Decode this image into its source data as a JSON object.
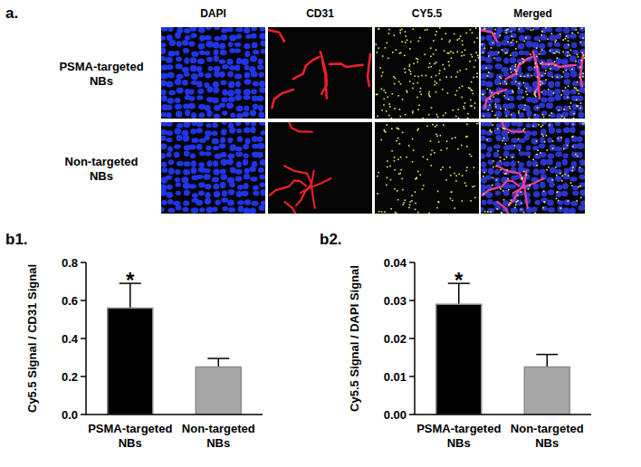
{
  "panel_a": {
    "label": "a.",
    "columns": [
      "DAPI",
      "CD31",
      "CY5.5",
      "Merged"
    ],
    "rows": [
      "PSMA-targeted NBs",
      "Non-targeted NBs"
    ]
  },
  "chart_data": [
    {
      "type": "bar",
      "title": "b1.",
      "y_label": "Cy5.5 Signal / CD31 Signal",
      "categories": [
        "PSMA-targeted NBs",
        "Non-targeted NBs"
      ],
      "values": [
        0.56,
        0.25
      ],
      "errors": [
        0.13,
        0.045
      ],
      "significance": [
        "*",
        null
      ],
      "colors": [
        "#000000",
        "#a6a6a6"
      ],
      "ylim": [
        0,
        0.8
      ],
      "yticks": [
        {
          "value": 0,
          "label": "0.0"
        },
        0.2,
        0.4,
        0.6,
        0.8
      ],
      "grid": false
    },
    {
      "type": "bar",
      "title": "b2.",
      "y_label": "Cy5.5 Signal / DAPI Signal",
      "categories": [
        "PSMA-targeted NBs",
        "Non-targeted NBs"
      ],
      "values": [
        0.029,
        0.0125
      ],
      "errors": [
        0.0055,
        0.0033
      ],
      "significance": [
        "*",
        null
      ],
      "colors": [
        "#000000",
        "#a6a6a6"
      ],
      "ylim": [
        0,
        0.04
      ],
      "yticks": [
        {
          "value": 0,
          "label": "0.00"
        },
        {
          "value": 0.01,
          "label": "0.01"
        },
        {
          "value": 0.02,
          "label": "0.02"
        },
        {
          "value": 0.03,
          "label": "0.03"
        },
        {
          "value": 0.04,
          "label": "0.04"
        }
      ],
      "grid": false
    }
  ]
}
